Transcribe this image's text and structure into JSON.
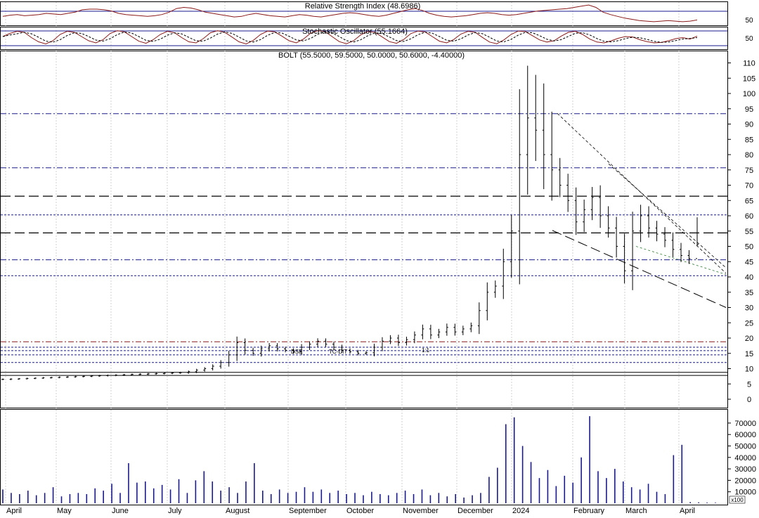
{
  "rsi_panel": {
    "title": "Relative Strength Index (48.6986)",
    "level_label": "50",
    "values": [
      55,
      57,
      58,
      56,
      57,
      58,
      60,
      59,
      58,
      60,
      62,
      66,
      67,
      67,
      66,
      64,
      60,
      58,
      57,
      56,
      55,
      56,
      58,
      62,
      68,
      70,
      69,
      66,
      62,
      60,
      58,
      56,
      54,
      55,
      58,
      60,
      58,
      56,
      55,
      54,
      56,
      58,
      57,
      55,
      54,
      56,
      58,
      60,
      61,
      60,
      58,
      56,
      55,
      57,
      60,
      63,
      66,
      68,
      65,
      60,
      57,
      55,
      54,
      55,
      56,
      58,
      60,
      61,
      60,
      58,
      57,
      58,
      60,
      62,
      64,
      65,
      66,
      67,
      68,
      70,
      72,
      74,
      70,
      62,
      58,
      55,
      52,
      50,
      48,
      47,
      46,
      47,
      48,
      47,
      46,
      47,
      49
    ]
  },
  "stoch_panel": {
    "title": "Stochastic Oscillator (55.1664)",
    "level_label": "50",
    "k": [
      60,
      75,
      85,
      80,
      55,
      35,
      25,
      40,
      70,
      85,
      80,
      60,
      40,
      30,
      45,
      75,
      88,
      82,
      60,
      38,
      28,
      45,
      70,
      85,
      78,
      55,
      35,
      30,
      50,
      78,
      88,
      80,
      58,
      35,
      25,
      42,
      70,
      86,
      82,
      62,
      40,
      30,
      48,
      76,
      88,
      84,
      60,
      36,
      26,
      40,
      68,
      84,
      80,
      58,
      36,
      28,
      46,
      74,
      86,
      82,
      60,
      38,
      30,
      46,
      72,
      85,
      80,
      56,
      34,
      26,
      44,
      70,
      86,
      84,
      64,
      44,
      34,
      40,
      62,
      80,
      85,
      70,
      48,
      34,
      30,
      40,
      52,
      60,
      58,
      45,
      36,
      30,
      32,
      40,
      50,
      55,
      48,
      62
    ]
  },
  "main_panel": {
    "title": "BOLT (55.5000, 59.5000, 50.0000, 50.6000, -4.40000)",
    "y_ticks": [
      "0",
      "5",
      "10",
      "15",
      "20",
      "25",
      "30",
      "35",
      "40",
      "45",
      "50",
      "55",
      "60",
      "65",
      "70",
      "75",
      "80",
      "85",
      "90",
      "95",
      "100",
      "105",
      "110"
    ],
    "overlay_labels": [
      "DSE",
      "TC-DIT",
      "1:1"
    ],
    "reference_lines": [
      93.4,
      75.7,
      66.4,
      60.3,
      54.4,
      45.6,
      40.4,
      18.8,
      17.0,
      15.9,
      14.5,
      12.0,
      8.8,
      7.8
    ]
  },
  "volume_panel": {
    "y_ticks": [
      "10000",
      "20000",
      "30000",
      "40000",
      "50000",
      "60000",
      "70000"
    ],
    "unit_label": "x100"
  },
  "x_axis": {
    "months": [
      "April",
      "May",
      "June",
      "July",
      "August",
      "September",
      "October",
      "November",
      "December",
      "2024",
      "February",
      "March",
      "April"
    ]
  },
  "chart_data": {
    "type": "ohlc",
    "ticker": "BOLT",
    "last_bar": {
      "open": 55.5,
      "high": 59.5,
      "low": 50.0,
      "close": 50.6,
      "change": -4.4
    },
    "weekly_close": [
      6.5,
      6.6,
      6.7,
      6.8,
      6.9,
      7.0,
      7.1,
      7.2,
      7.3,
      7.4,
      7.5,
      7.6,
      7.7,
      7.8,
      7.9,
      8.0,
      8.1,
      8.2,
      8.3,
      8.4,
      8.5,
      8.6,
      8.7,
      9.0,
      9.5,
      10.0,
      10.8,
      12.0,
      14.5,
      18.5,
      16.0,
      15.0,
      16.5,
      17.5,
      16.5,
      16.0,
      15.5,
      17.0,
      18.0,
      19.0,
      18.0,
      17.0,
      16.0,
      15.5,
      15.0,
      15.2,
      17.0,
      19.0,
      20.0,
      18.5,
      19.5,
      21.0,
      23.0,
      21.0,
      22.0,
      23.5,
      22.0,
      23.0,
      24.0,
      29.0,
      35.0,
      37.0,
      45.0,
      55.0,
      80.0,
      92.0,
      88.0,
      80.0,
      75.0,
      70.0,
      65.0,
      58.0,
      62.0,
      66.0,
      60.0,
      56.0,
      50.0,
      42.0,
      55.0,
      60.0,
      56.0,
      54.0,
      52.0,
      49.0,
      47.0,
      46.0,
      50.6
    ],
    "y_range": [
      0,
      110
    ],
    "volume_x100": [
      12000,
      9000,
      8000,
      11000,
      7000,
      9000,
      14000,
      6000,
      8000,
      9000,
      8000,
      13000,
      11000,
      17000,
      9000,
      35000,
      18000,
      19000,
      13000,
      16000,
      12000,
      21000,
      9000,
      20000,
      28000,
      19000,
      11000,
      14000,
      9000,
      19000,
      35000,
      11000,
      8000,
      12000,
      9000,
      10000,
      14000,
      10000,
      12000,
      9000,
      11000,
      8000,
      9000,
      7000,
      10000,
      8000,
      7000,
      9000,
      11000,
      8000,
      12000,
      7000,
      9000,
      6000,
      8000,
      5000,
      7000,
      9000,
      23000,
      31000,
      69000,
      75000,
      50000,
      36000,
      22000,
      29000,
      15000,
      24000,
      18000,
      40000,
      76000,
      28000,
      22000,
      30000,
      19000,
      14000,
      12000,
      17000,
      10000,
      8000,
      42000,
      51000,
      1000,
      800,
      600,
      500
    ]
  }
}
